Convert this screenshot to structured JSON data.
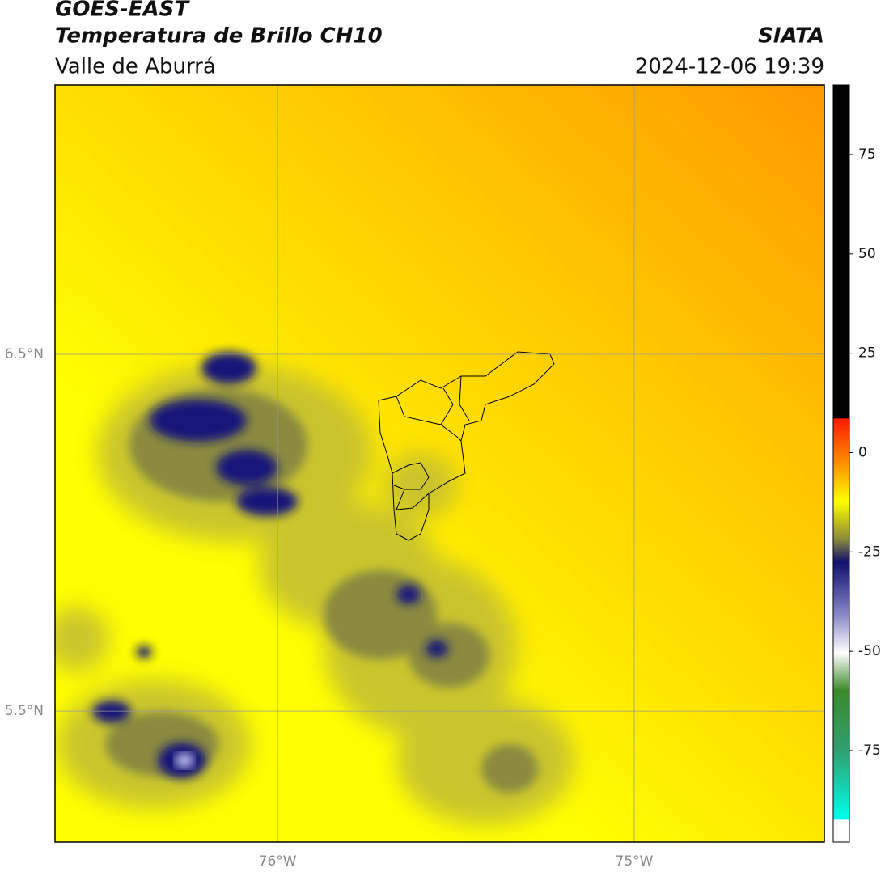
{
  "header": {
    "satellite": "GOES-EAST",
    "product": "Temperatura de Brillo CH10",
    "region": "Valle de Aburrá",
    "source": "SIATA",
    "timestamp": "2024-12-06 19:39"
  },
  "chart_data": {
    "type": "map",
    "xlim": [
      -76.624,
      -74.467
    ],
    "ylim": [
      5.133,
      7.255
    ],
    "xticks": [
      {
        "value": -76,
        "label": "76°W"
      },
      {
        "value": -75,
        "label": "75°W"
      }
    ],
    "yticks": [
      {
        "value": 5.5,
        "label": "5.5°N"
      },
      {
        "value": 6.5,
        "label": "6.5°N"
      }
    ],
    "grid": true,
    "colorbar": {
      "lim": [
        -98,
        92.5
      ],
      "ticks": [
        -75,
        -50,
        -25,
        0,
        25,
        50,
        75
      ]
    }
  }
}
